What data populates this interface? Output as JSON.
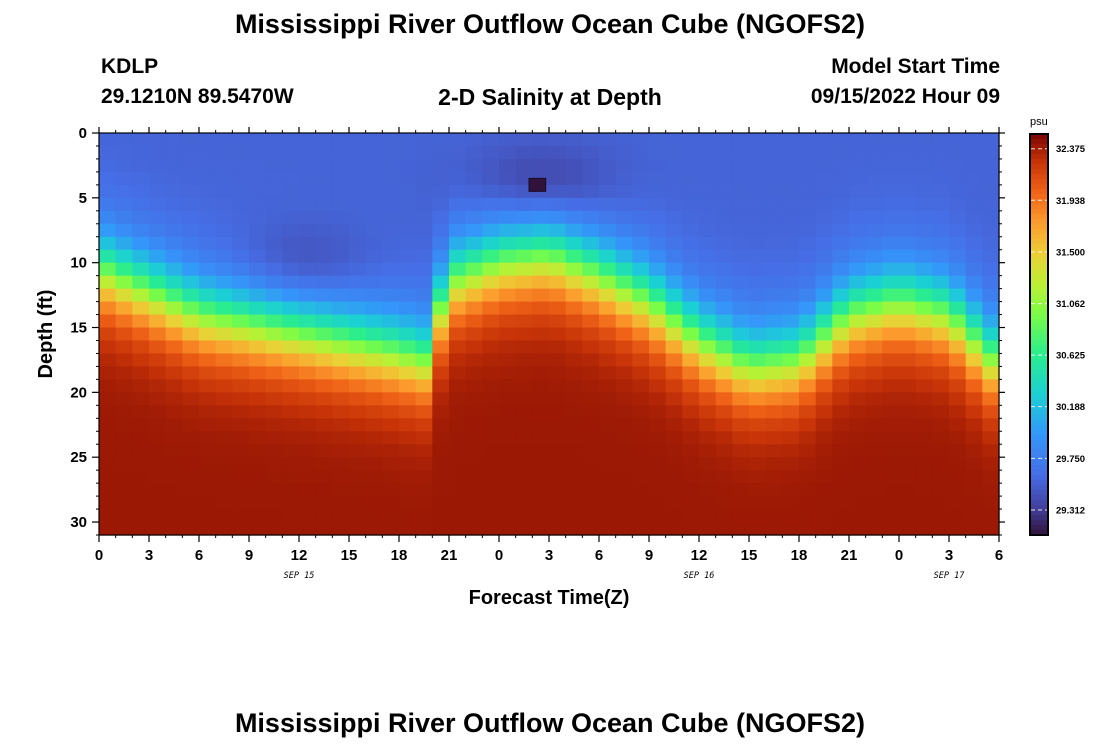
{
  "header": {
    "title": "Mississippi River Outflow Ocean Cube (NGOFS2)",
    "station_id": "KDLP",
    "station_coords": "29.1210N  89.5470W",
    "subtitle": "2-D Salinity at Depth",
    "model_start_label": "Model Start Time",
    "model_start_value": "09/15/2022 Hour 09"
  },
  "footer": {
    "title_repeat": "Mississippi River Outflow Ocean Cube (NGOFS2)"
  },
  "chart_data": {
    "type": "heatmap",
    "title": "2-D Salinity at Depth",
    "xlabel": "Forecast Time(Z)",
    "ylabel": "Depth (ft)",
    "x_tick_labels": [
      "0",
      "3",
      "6",
      "9",
      "12",
      "15",
      "18",
      "21",
      "0",
      "3",
      "6",
      "9",
      "12",
      "15",
      "18",
      "21",
      "0",
      "3",
      "6"
    ],
    "x_date_labels": [
      {
        "label": "SEP 15",
        "at_hours": 12
      },
      {
        "label": "SEP 16",
        "at_hours": 36
      },
      {
        "label": "SEP 17",
        "at_hours": 51
      }
    ],
    "x_range_hours": [
      0,
      54
    ],
    "y_ticks": [
      0,
      5,
      10,
      15,
      20,
      25,
      30
    ],
    "y_range_ft": [
      0,
      31
    ],
    "y_inverted": true,
    "colorbar": {
      "unit": "psu",
      "min": 29.1,
      "max": 32.5,
      "tick_labels": [
        "32.375",
        "31.938",
        "31.500",
        "31.062",
        "30.625",
        "30.188",
        "29.750",
        "29.312"
      ],
      "tick_values": [
        32.375,
        31.938,
        31.5,
        31.062,
        30.625,
        30.188,
        29.75,
        29.312
      ]
    },
    "halocline_depth_ft": [
      {
        "hours": 0,
        "depth": 10.5
      },
      {
        "hours": 6,
        "depth": 14
      },
      {
        "hours": 12,
        "depth": 15.5
      },
      {
        "hours": 18,
        "depth": 17
      },
      {
        "hours": 19.5,
        "depth": 17.5
      },
      {
        "hours": 21,
        "depth": 11.5
      },
      {
        "hours": 24,
        "depth": 10
      },
      {
        "hours": 27,
        "depth": 9.5
      },
      {
        "hours": 30,
        "depth": 11
      },
      {
        "hours": 33,
        "depth": 13
      },
      {
        "hours": 36,
        "depth": 16
      },
      {
        "hours": 39,
        "depth": 18
      },
      {
        "hours": 42,
        "depth": 17.5
      },
      {
        "hours": 45,
        "depth": 14
      },
      {
        "hours": 48,
        "depth": 13
      },
      {
        "hours": 51,
        "depth": 14
      },
      {
        "hours": 54,
        "depth": 18
      }
    ],
    "surface_salinity_psu": 29.55,
    "bottom_salinity_psu": 32.4,
    "fresh_core": [
      {
        "hours": 12,
        "depth_ft": 10.5,
        "salinity_psu": 29.35
      },
      {
        "hours": 26.5,
        "depth_ft": 4,
        "salinity_psu": 29.3
      }
    ],
    "marker_cell": {
      "hours_start": 25.8,
      "hours_end": 26.8,
      "depth_start_ft": 3.5,
      "depth_end_ft": 4.5
    }
  }
}
